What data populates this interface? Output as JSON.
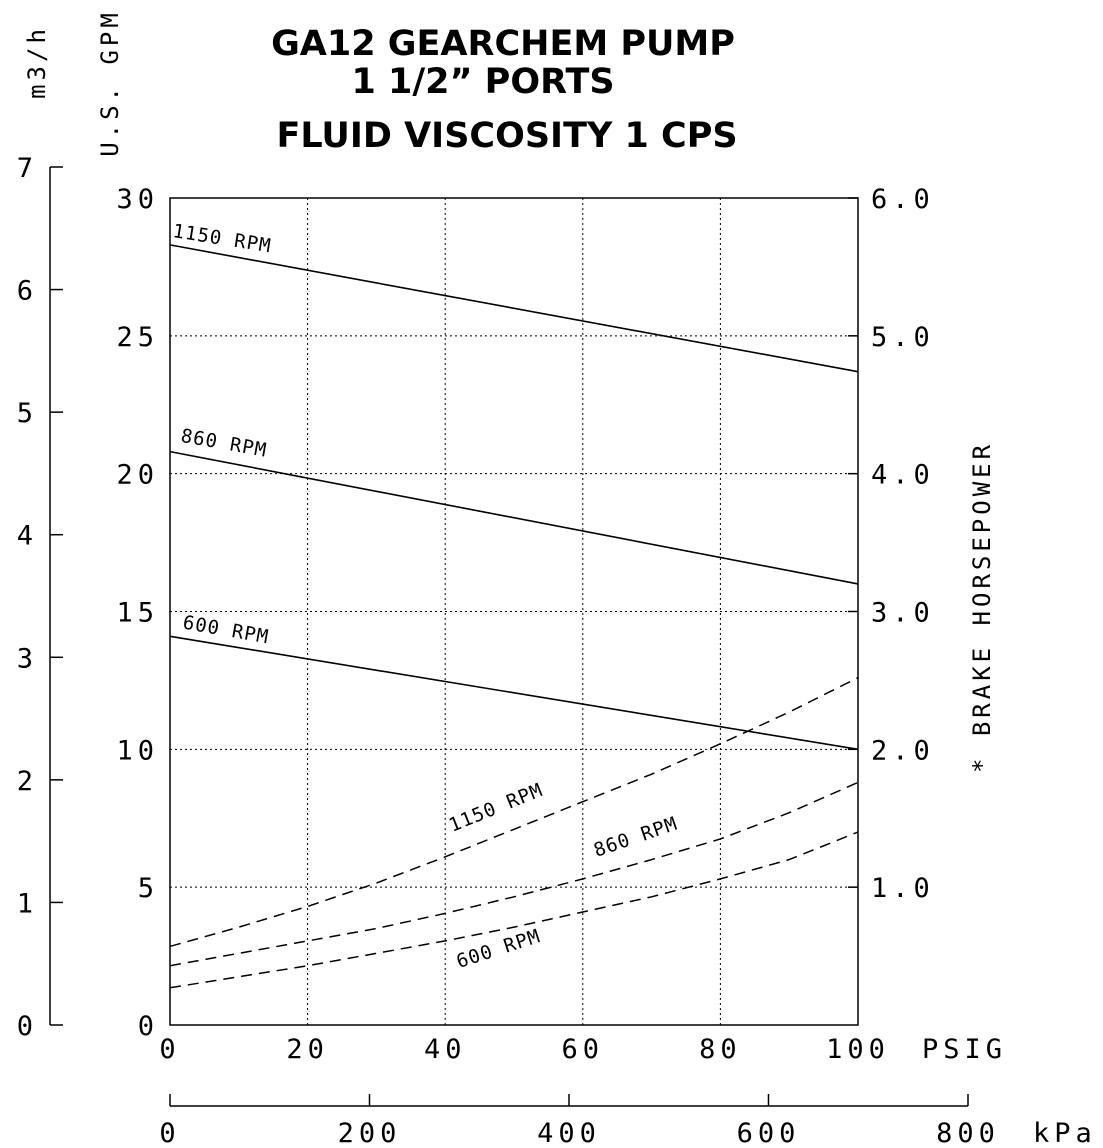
{
  "chart_data": {
    "type": "line",
    "title_lines": [
      "GA12  GEARCHEM  PUMP",
      "1 1/2”  PORTS",
      "FLUID  VISCOSITY  1  CPS"
    ],
    "x_unit_label": "PSIG",
    "x_ticks": [
      "0",
      "20",
      "40",
      "60",
      "80",
      "100"
    ],
    "xlim": [
      0,
      100
    ],
    "kpa_unit_label": "kPa",
    "kpa_ticks": [
      "0",
      "200",
      "400",
      "600",
      "800"
    ],
    "kpa_lim": [
      0,
      800
    ],
    "left_axis_label": "U.S.  GPM",
    "left_ticks": [
      "0",
      "5",
      "10",
      "15",
      "20",
      "25",
      "30"
    ],
    "ylim_gpm": [
      0,
      30
    ],
    "m3h_axis_label": "m3/h",
    "m3h_ticks": [
      "0",
      "1",
      "2",
      "3",
      "4",
      "5",
      "6",
      "7"
    ],
    "ylim_m3h": [
      0,
      7
    ],
    "right_axis_label": "* BRAKE HORSEPOWER",
    "right_ticks": [
      "1.0",
      "2.0",
      "3.0",
      "4.0",
      "5.0",
      "6.0"
    ],
    "ylim_bhp": [
      0,
      6
    ],
    "grid": true,
    "colors": {
      "line": "#000000",
      "grid": "#000000",
      "background": "#ffffff"
    },
    "flow_series": [
      {
        "name": "1150 RPM",
        "x": [
          0,
          100
        ],
        "y": [
          28.3,
          23.7
        ]
      },
      {
        "name": "860 RPM",
        "x": [
          0,
          100
        ],
        "y": [
          20.8,
          16.0
        ]
      },
      {
        "name": "600 RPM",
        "x": [
          0,
          100
        ],
        "y": [
          14.1,
          10.0
        ]
      }
    ],
    "bhp_series": [
      {
        "name": "1150 RPM",
        "x": [
          0,
          10,
          20,
          30,
          40,
          50,
          60,
          70,
          80,
          90,
          100
        ],
        "y": [
          0.57,
          0.71,
          0.86,
          1.03,
          1.22,
          1.42,
          1.62,
          1.82,
          2.04,
          2.27,
          2.52
        ]
      },
      {
        "name": "860 RPM",
        "x": [
          0,
          10,
          20,
          30,
          40,
          50,
          60,
          70,
          80,
          90,
          100
        ],
        "y": [
          0.43,
          0.52,
          0.61,
          0.7,
          0.81,
          0.93,
          1.06,
          1.2,
          1.35,
          1.54,
          1.76
        ]
      },
      {
        "name": "600 RPM",
        "x": [
          0,
          10,
          20,
          30,
          40,
          50,
          60,
          70,
          80,
          90,
          100
        ],
        "y": [
          0.27,
          0.35,
          0.43,
          0.52,
          0.61,
          0.71,
          0.82,
          0.93,
          1.06,
          1.2,
          1.4
        ]
      }
    ]
  }
}
